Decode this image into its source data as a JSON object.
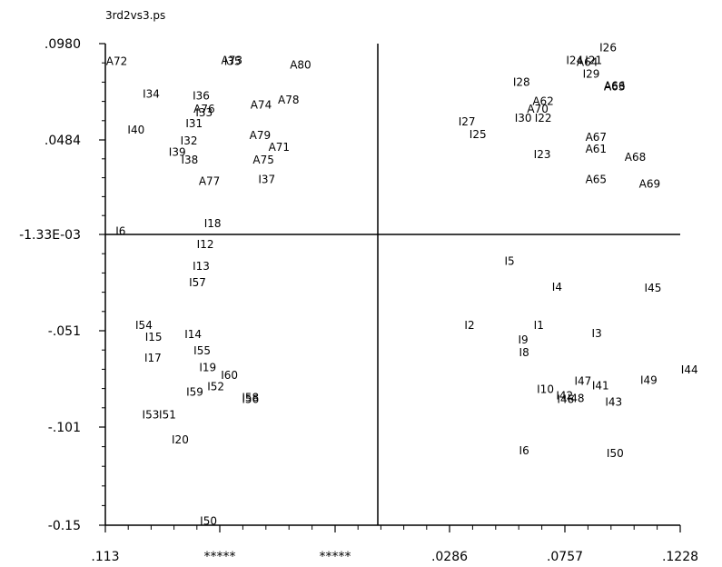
{
  "title": "3rd2vs3.ps",
  "chart_data": {
    "type": "scatter",
    "title": "3rd2vs3.ps",
    "xlabel": "",
    "ylabel": "",
    "xlim": [
      -0.113,
      0.1228
    ],
    "ylim": [
      -0.15,
      0.098
    ],
    "grid": false,
    "x_tick_labels": [
      ".113",
      "*****",
      "*****",
      ".0286",
      ".0757",
      ".1228"
    ],
    "y_tick_labels": [
      ".0980",
      ".0484",
      "-1.33E-03",
      "-.051",
      "-.101",
      "-0.15"
    ],
    "points": [
      {
        "label": "A72",
        "x": -0.1127,
        "y": 0.0889
      },
      {
        "label": "A73",
        "x": -0.0655,
        "y": 0.0894
      },
      {
        "label": "I35",
        "x": -0.0643,
        "y": 0.0889
      },
      {
        "label": "A80",
        "x": -0.0373,
        "y": 0.0871
      },
      {
        "label": "I34",
        "x": -0.0977,
        "y": 0.072
      },
      {
        "label": "I36",
        "x": -0.0772,
        "y": 0.071
      },
      {
        "label": "A74",
        "x": -0.0535,
        "y": 0.0663
      },
      {
        "label": "A78",
        "x": -0.0422,
        "y": 0.0691
      },
      {
        "label": "A76",
        "x": -0.0768,
        "y": 0.0644
      },
      {
        "label": "I33",
        "x": -0.076,
        "y": 0.0625
      },
      {
        "label": "I31",
        "x": -0.0801,
        "y": 0.0569
      },
      {
        "label": "I40",
        "x": -0.1039,
        "y": 0.0536
      },
      {
        "label": "I32",
        "x": -0.0822,
        "y": 0.048
      },
      {
        "label": "A79",
        "x": -0.0539,
        "y": 0.0507
      },
      {
        "label": "A71",
        "x": -0.0461,
        "y": 0.0446
      },
      {
        "label": "I39",
        "x": -0.087,
        "y": 0.0422
      },
      {
        "label": "I38",
        "x": -0.0819,
        "y": 0.0382
      },
      {
        "label": "A75",
        "x": -0.0525,
        "y": 0.0382
      },
      {
        "label": "A77",
        "x": -0.0747,
        "y": 0.0271
      },
      {
        "label": "I37",
        "x": -0.0503,
        "y": 0.0281
      },
      {
        "label": "I18",
        "x": -0.0725,
        "y": 0.0054
      },
      {
        "label": "I6",
        "x": -0.1088,
        "y": 0.0013
      },
      {
        "label": "I12",
        "x": -0.0755,
        "y": -0.0055
      },
      {
        "label": "I13",
        "x": -0.0772,
        "y": -0.0166
      },
      {
        "label": "I57",
        "x": -0.0787,
        "y": -0.0251
      },
      {
        "label": "I54",
        "x": -0.1007,
        "y": -0.047
      },
      {
        "label": "I15",
        "x": -0.0967,
        "y": -0.0531
      },
      {
        "label": "I14",
        "x": -0.0805,
        "y": -0.0517
      },
      {
        "label": "I55",
        "x": -0.0768,
        "y": -0.0602
      },
      {
        "label": "I17",
        "x": -0.097,
        "y": -0.0639
      },
      {
        "label": "I19",
        "x": -0.0745,
        "y": -0.0687
      },
      {
        "label": "I60",
        "x": -0.0656,
        "y": -0.0729
      },
      {
        "label": "I52",
        "x": -0.0712,
        "y": -0.0786
      },
      {
        "label": "I59",
        "x": -0.0798,
        "y": -0.0814
      },
      {
        "label": "I53",
        "x": -0.0979,
        "y": -0.0932
      },
      {
        "label": "I51",
        "x": -0.091,
        "y": -0.0932
      },
      {
        "label": "I58",
        "x": -0.057,
        "y": -0.0842
      },
      {
        "label": "I56",
        "x": -0.057,
        "y": -0.0852
      },
      {
        "label": "I20",
        "x": -0.0858,
        "y": -0.1059
      },
      {
        "label": "I50",
        "x": -0.0742,
        "y": -0.1479
      },
      {
        "label": "I26",
        "x": 0.0897,
        "y": 0.096
      },
      {
        "label": "I24",
        "x": 0.076,
        "y": 0.0894
      },
      {
        "label": "A64",
        "x": 0.0803,
        "y": 0.0884
      },
      {
        "label": "I21",
        "x": 0.0838,
        "y": 0.0894
      },
      {
        "label": "I29",
        "x": 0.0828,
        "y": 0.0823
      },
      {
        "label": "A66",
        "x": 0.0915,
        "y": 0.0762
      },
      {
        "label": "A63",
        "x": 0.0915,
        "y": 0.0757
      },
      {
        "label": "I28",
        "x": 0.0542,
        "y": 0.0781
      },
      {
        "label": "A62",
        "x": 0.0622,
        "y": 0.0682
      },
      {
        "label": "A70",
        "x": 0.06,
        "y": 0.0644
      },
      {
        "label": "I30",
        "x": 0.0549,
        "y": 0.0597
      },
      {
        "label": "I22",
        "x": 0.0631,
        "y": 0.0597
      },
      {
        "label": "I27",
        "x": 0.0318,
        "y": 0.0578
      },
      {
        "label": "I25",
        "x": 0.0363,
        "y": 0.0512
      },
      {
        "label": "A67",
        "x": 0.0839,
        "y": 0.0498
      },
      {
        "label": "A61",
        "x": 0.0839,
        "y": 0.0437
      },
      {
        "label": "I23",
        "x": 0.0627,
        "y": 0.0408
      },
      {
        "label": "A68",
        "x": 0.1,
        "y": 0.0394
      },
      {
        "label": "A65",
        "x": 0.0839,
        "y": 0.0281
      },
      {
        "label": "A69",
        "x": 0.1059,
        "y": 0.0257
      },
      {
        "label": "I5",
        "x": 0.0507,
        "y": -0.014
      },
      {
        "label": "I4",
        "x": 0.0702,
        "y": -0.0274
      },
      {
        "label": "I45",
        "x": 0.1081,
        "y": -0.0279
      },
      {
        "label": "I2",
        "x": 0.0343,
        "y": -0.047
      },
      {
        "label": "I1",
        "x": 0.0627,
        "y": -0.047
      },
      {
        "label": "I3",
        "x": 0.0865,
        "y": -0.0512
      },
      {
        "label": "I9",
        "x": 0.0563,
        "y": -0.0545
      },
      {
        "label": "I8",
        "x": 0.0567,
        "y": -0.0611
      },
      {
        "label": "I44",
        "x": 0.1231,
        "y": -0.0701
      },
      {
        "label": "I49",
        "x": 0.1064,
        "y": -0.0753
      },
      {
        "label": "I47",
        "x": 0.0794,
        "y": -0.0758
      },
      {
        "label": "I41",
        "x": 0.0866,
        "y": -0.0781
      },
      {
        "label": "I10",
        "x": 0.064,
        "y": -0.08
      },
      {
        "label": "I42",
        "x": 0.0719,
        "y": -0.0833
      },
      {
        "label": "I46",
        "x": 0.0723,
        "y": -0.0852
      },
      {
        "label": "I48",
        "x": 0.0765,
        "y": -0.0847
      },
      {
        "label": "I43",
        "x": 0.092,
        "y": -0.0866
      },
      {
        "label": "I6",
        "x": 0.0567,
        "y": -0.1116
      },
      {
        "label": "I50",
        "x": 0.0926,
        "y": -0.1131
      }
    ]
  }
}
